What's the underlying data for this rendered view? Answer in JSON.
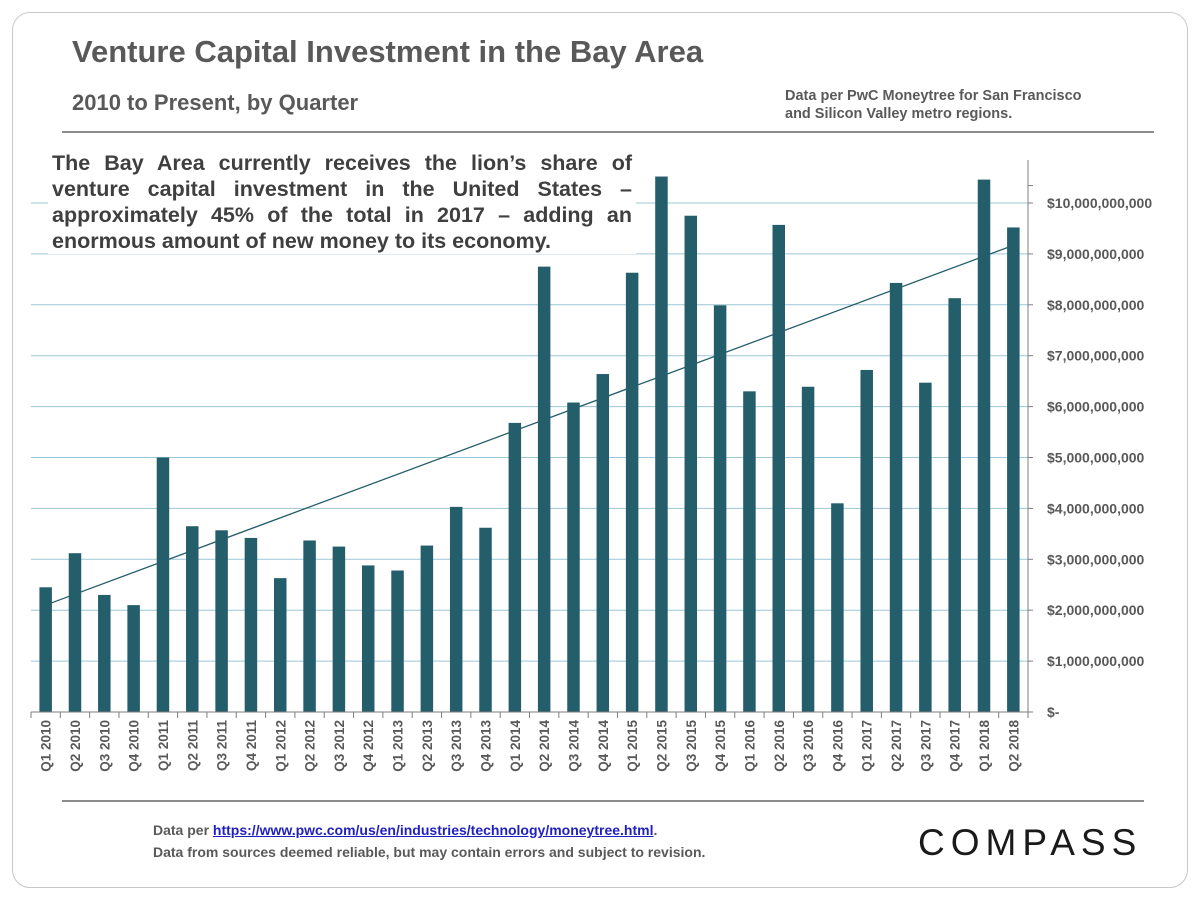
{
  "header": {
    "title": "Venture Capital Investment in the Bay Area",
    "subtitle": "2010 to Present, by Quarter",
    "source_line1": "Data per PwC Moneytree for  San Francisco",
    "source_line2": "and Silicon Valley metro regions."
  },
  "annotation": "The Bay Area currently receives the lion’s share of venture capital investment in the United States – approximately 45% of the total in 2017 – adding an enormous amount of new money to its economy.",
  "footer": {
    "prefix": "Data per ",
    "link_text": "https://www.pwc.com/us/en/industries/technology/moneytree.html",
    "suffix": ".",
    "disclaimer": "Data from sources deemed reliable, but may contain errors and subject to revision.",
    "logo": "COMPASS"
  },
  "colors": {
    "bar": "#255e6b",
    "grid": "#9cc7d6",
    "trendline": "#255e6b",
    "text": "#595959"
  },
  "chart_data": {
    "type": "bar",
    "title": "Venture Capital Investment in the Bay Area",
    "subtitle": "2010 to Present, by Quarter",
    "xlabel": "",
    "ylabel": "",
    "ylim": [
      0,
      10500000000
    ],
    "y_axis_side": "right",
    "grid": true,
    "trendline": "linear",
    "yticks": [
      0,
      1000000000,
      2000000000,
      3000000000,
      4000000000,
      5000000000,
      6000000000,
      7000000000,
      8000000000,
      9000000000,
      10000000000
    ],
    "ytick_labels": [
      "$-",
      "$1,000,000,000",
      "$2,000,000,000",
      "$3,000,000,000",
      "$4,000,000,000",
      "$5,000,000,000",
      "$6,000,000,000",
      "$7,000,000,000",
      "$8,000,000,000",
      "$9,000,000,000",
      "$10,000,000,000"
    ],
    "categories": [
      "Q1 2010",
      "Q2 2010",
      "Q3 2010",
      "Q4 2010",
      "Q1 2011",
      "Q2 2011",
      "Q3 2011",
      "Q4 2011",
      "Q1 2012",
      "Q2 2012",
      "Q3 2012",
      "Q4 2012",
      "Q1 2013",
      "Q2 2013",
      "Q3 2013",
      "Q4 2013",
      "Q1 2014",
      "Q2 2014",
      "Q3 2014",
      "Q4 2014",
      "Q1 2015",
      "Q2 2015",
      "Q3 2015",
      "Q4 2015",
      "Q1 2016",
      "Q2 2016",
      "Q3 2016",
      "Q4 2016",
      "Q1 2017",
      "Q2 2017",
      "Q3 2017",
      "Q4 2017",
      "Q1 2018",
      "Q2 2018"
    ],
    "values": [
      2450000000,
      3120000000,
      2300000000,
      2100000000,
      5000000000,
      3650000000,
      3570000000,
      3420000000,
      2630000000,
      3370000000,
      3250000000,
      2880000000,
      2780000000,
      3270000000,
      4030000000,
      3620000000,
      5680000000,
      8750000000,
      6080000000,
      6640000000,
      8630000000,
      10520000000,
      9750000000,
      7990000000,
      6300000000,
      9570000000,
      6390000000,
      4100000000,
      6720000000,
      8430000000,
      6470000000,
      8130000000,
      10460000000,
      9520000000
    ]
  }
}
